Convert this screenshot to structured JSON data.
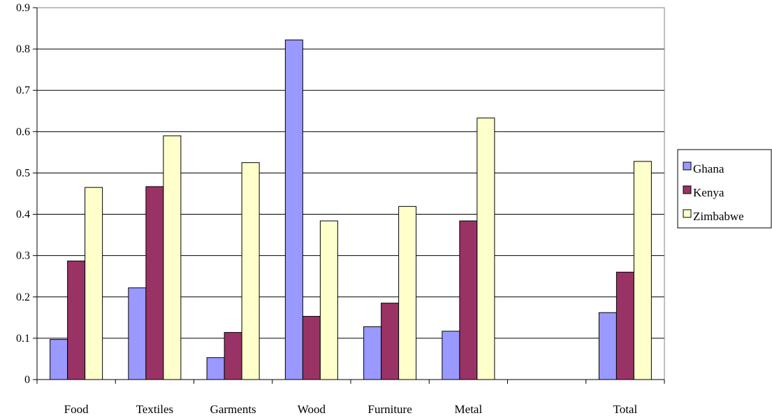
{
  "chart_data": {
    "type": "bar",
    "title": "",
    "xlabel": "",
    "ylabel": "",
    "ylim": [
      0,
      0.9
    ],
    "yticks": [
      "0",
      "0.1",
      "0.2",
      "0.3",
      "0.4",
      "0.5",
      "0.6",
      "0.7",
      "0.8",
      "0.9"
    ],
    "grid": true,
    "legend_position": "right",
    "categories": [
      "Food",
      "Textiles",
      "Garments",
      "Wood",
      "Furniture",
      "Metal",
      "",
      "Total"
    ],
    "series": [
      {
        "name": "Ghana",
        "color": "#9999ff",
        "values": [
          0.097,
          0.222,
          0.053,
          0.822,
          0.128,
          0.117,
          null,
          0.162
        ]
      },
      {
        "name": "Kenya",
        "color": "#993366",
        "values": [
          0.287,
          0.467,
          0.114,
          0.153,
          0.185,
          0.384,
          null,
          0.26
        ]
      },
      {
        "name": "Zimbabwe",
        "color": "#ffffcc",
        "values": [
          0.465,
          0.59,
          0.525,
          0.384,
          0.419,
          0.633,
          null,
          0.528
        ]
      }
    ]
  }
}
